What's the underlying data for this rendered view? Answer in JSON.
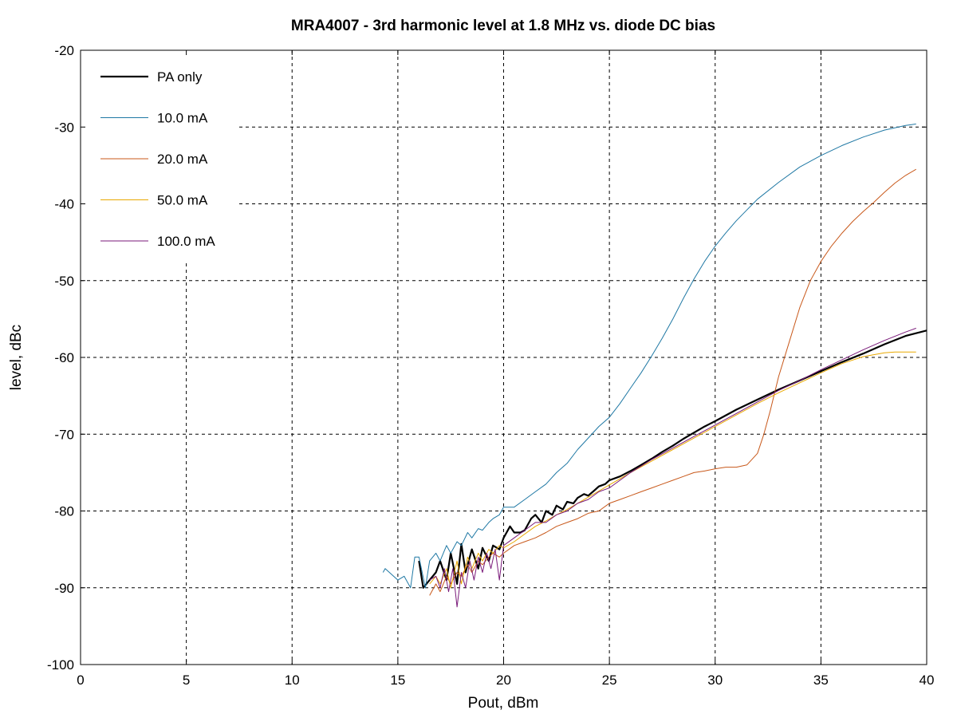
{
  "chart_data": {
    "type": "line",
    "title": "MRA4007 - 3rd harmonic level at 1.8 MHz vs. diode DC bias",
    "xlabel": "Pout, dBm",
    "ylabel": "level, dBc",
    "xlim": [
      0,
      40
    ],
    "ylim": [
      -100,
      -20
    ],
    "xticks": [
      0,
      5,
      10,
      15,
      20,
      25,
      30,
      35,
      40
    ],
    "yticks": [
      -100,
      -90,
      -80,
      -70,
      -60,
      -50,
      -40,
      -30,
      -20
    ],
    "grid": true,
    "legend_position": "top-left",
    "series": [
      {
        "name": "PA only",
        "color": "#000000",
        "x": [
          16.0,
          16.2,
          16.5,
          16.8,
          17.0,
          17.3,
          17.5,
          17.8,
          18.0,
          18.2,
          18.5,
          18.8,
          19.0,
          19.3,
          19.5,
          19.8,
          20.0,
          20.3,
          20.5,
          20.8,
          21.0,
          21.3,
          21.5,
          21.8,
          22.0,
          22.3,
          22.5,
          22.8,
          23.0,
          23.3,
          23.5,
          23.8,
          24.0,
          24.3,
          24.5,
          24.8,
          25.0,
          25.5,
          26.0,
          26.5,
          27.0,
          27.5,
          28.0,
          28.5,
          29.0,
          29.5,
          30.0,
          31.0,
          32.0,
          33.0,
          34.0,
          35.0,
          36.0,
          37.0,
          38.0,
          39.0,
          40.0
        ],
        "y": [
          -86.5,
          -90.0,
          -89.0,
          -88.0,
          -86.5,
          -89.0,
          -85.5,
          -89.5,
          -84.3,
          -88.0,
          -85.0,
          -87.5,
          -84.8,
          -86.5,
          -84.5,
          -85.0,
          -83.5,
          -82.0,
          -82.8,
          -82.8,
          -82.5,
          -81.0,
          -80.5,
          -81.5,
          -80.0,
          -80.5,
          -79.3,
          -79.8,
          -78.8,
          -79.0,
          -78.3,
          -77.8,
          -78.0,
          -77.3,
          -76.8,
          -76.5,
          -76.0,
          -75.5,
          -74.8,
          -74.0,
          -73.2,
          -72.3,
          -71.5,
          -70.6,
          -69.8,
          -69.0,
          -68.3,
          -66.8,
          -65.5,
          -64.2,
          -63.0,
          -61.8,
          -60.6,
          -59.5,
          -58.3,
          -57.2,
          -56.5
        ]
      },
      {
        "name": "10.0 mA",
        "color": "#1f78a4",
        "x": [
          14.3,
          14.4,
          15.0,
          15.3,
          15.6,
          15.8,
          16.0,
          16.3,
          16.5,
          16.8,
          17.0,
          17.3,
          17.5,
          17.8,
          18.0,
          18.3,
          18.5,
          18.8,
          19.0,
          19.3,
          19.5,
          19.8,
          20.0,
          20.5,
          21.0,
          21.5,
          22.0,
          22.5,
          23.0,
          23.5,
          24.0,
          24.5,
          25.0,
          25.5,
          26.0,
          26.5,
          27.0,
          27.5,
          28.0,
          28.5,
          29.0,
          29.5,
          30.0,
          30.5,
          31.0,
          31.5,
          32.0,
          33.0,
          34.0,
          35.0,
          36.0,
          37.0,
          38.0,
          39.0,
          39.5
        ],
        "y": [
          -88.0,
          -87.5,
          -89.0,
          -88.5,
          -90.0,
          -86.0,
          -86.0,
          -90.0,
          -86.5,
          -85.5,
          -86.5,
          -84.5,
          -85.5,
          -84.0,
          -84.5,
          -82.8,
          -83.5,
          -82.3,
          -82.5,
          -81.5,
          -81.0,
          -80.5,
          -79.5,
          -79.5,
          -78.5,
          -77.5,
          -76.5,
          -75.0,
          -73.8,
          -72.0,
          -70.5,
          -69.0,
          -67.8,
          -66.0,
          -64.0,
          -62.0,
          -59.8,
          -57.5,
          -55.0,
          -52.3,
          -49.8,
          -47.5,
          -45.5,
          -43.8,
          -42.2,
          -40.8,
          -39.4,
          -37.2,
          -35.2,
          -33.7,
          -32.4,
          -31.3,
          -30.4,
          -29.8,
          -29.6
        ]
      },
      {
        "name": "20.0 mA",
        "color": "#c8581a",
        "x": [
          16.5,
          16.8,
          17.0,
          17.3,
          17.5,
          17.8,
          18.0,
          18.3,
          18.5,
          18.8,
          19.0,
          19.3,
          19.5,
          19.8,
          20.0,
          20.5,
          21.0,
          21.5,
          22.0,
          22.5,
          23.0,
          23.5,
          24.0,
          24.5,
          25.0,
          25.5,
          26.0,
          26.5,
          27.0,
          27.5,
          28.0,
          28.5,
          29.0,
          29.5,
          30.0,
          30.5,
          31.0,
          31.5,
          32.0,
          32.3,
          32.6,
          33.0,
          33.5,
          34.0,
          34.5,
          35.0,
          35.5,
          36.0,
          36.5,
          37.0,
          37.5,
          38.0,
          38.5,
          39.0,
          39.5
        ],
        "y": [
          -91.0,
          -89.5,
          -90.5,
          -88.5,
          -89.5,
          -88.0,
          -88.5,
          -87.0,
          -88.0,
          -86.5,
          -87.0,
          -86.0,
          -85.5,
          -86.0,
          -85.5,
          -84.5,
          -84.0,
          -83.5,
          -82.8,
          -82.0,
          -81.5,
          -81.0,
          -80.3,
          -80.0,
          -79.0,
          -78.5,
          -78.0,
          -77.5,
          -77.0,
          -76.5,
          -76.0,
          -75.5,
          -75.0,
          -74.8,
          -74.5,
          -74.3,
          -74.3,
          -74.0,
          -72.5,
          -70.0,
          -67.0,
          -62.5,
          -58.0,
          -53.5,
          -50.0,
          -47.5,
          -45.5,
          -43.8,
          -42.3,
          -41.0,
          -39.8,
          -38.5,
          -37.3,
          -36.3,
          -35.5
        ]
      },
      {
        "name": "50.0 mA",
        "color": "#e8a800",
        "x": [
          16.5,
          16.8,
          17.0,
          17.3,
          17.5,
          17.8,
          18.0,
          18.3,
          18.5,
          18.8,
          19.0,
          19.3,
          19.5,
          19.8,
          20.0,
          20.5,
          21.0,
          21.5,
          22.0,
          22.5,
          23.0,
          23.5,
          24.0,
          24.5,
          25.0,
          26.0,
          27.0,
          28.0,
          29.0,
          30.0,
          31.0,
          32.0,
          33.0,
          34.0,
          35.0,
          36.0,
          37.0,
          38.0,
          38.5,
          39.0,
          39.5
        ],
        "y": [
          -89.5,
          -88.5,
          -89.5,
          -87.5,
          -90.0,
          -86.5,
          -89.5,
          -86.0,
          -87.5,
          -85.5,
          -86.5,
          -85.0,
          -85.5,
          -84.5,
          -84.8,
          -84.0,
          -83.0,
          -82.0,
          -81.3,
          -80.5,
          -79.8,
          -79.0,
          -78.2,
          -77.4,
          -76.6,
          -75.0,
          -73.5,
          -72.0,
          -70.5,
          -69.0,
          -67.5,
          -66.0,
          -64.6,
          -63.3,
          -62.0,
          -60.8,
          -59.9,
          -59.4,
          -59.3,
          -59.3,
          -59.3
        ]
      },
      {
        "name": "100.0 mA",
        "color": "#7a1a7a",
        "x": [
          16.5,
          16.8,
          17.0,
          17.2,
          17.4,
          17.6,
          17.8,
          18.0,
          18.2,
          18.4,
          18.6,
          18.8,
          19.0,
          19.2,
          19.4,
          19.6,
          19.8,
          20.0,
          20.5,
          21.0,
          21.5,
          22.0,
          22.5,
          23.0,
          23.5,
          24.0,
          24.5,
          25.0,
          25.5,
          26.0,
          27.0,
          28.0,
          29.0,
          30.0,
          31.0,
          32.0,
          33.0,
          34.0,
          35.0,
          36.0,
          37.0,
          38.0,
          39.0,
          39.5
        ],
        "y": [
          -89.0,
          -88.5,
          -90.0,
          -87.5,
          -90.5,
          -87.5,
          -92.5,
          -88.0,
          -90.0,
          -86.5,
          -89.0,
          -86.0,
          -88.0,
          -85.5,
          -87.5,
          -85.0,
          -89.0,
          -84.5,
          -83.5,
          -82.5,
          -81.5,
          -81.5,
          -80.5,
          -80.0,
          -79.0,
          -78.5,
          -77.5,
          -77.0,
          -76.0,
          -75.0,
          -73.3,
          -71.8,
          -70.3,
          -68.8,
          -67.3,
          -65.8,
          -64.3,
          -63.0,
          -61.6,
          -60.3,
          -59.0,
          -57.8,
          -56.7,
          -56.2
        ]
      }
    ]
  }
}
